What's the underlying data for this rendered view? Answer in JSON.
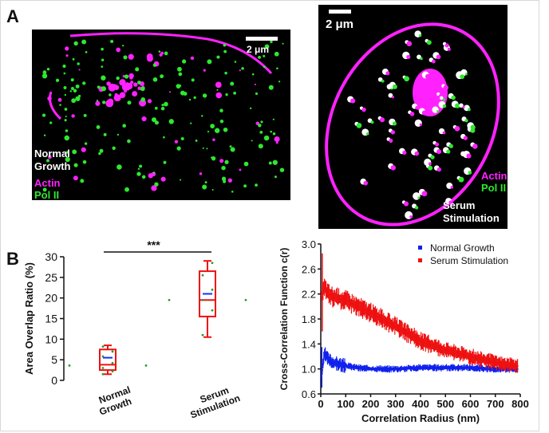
{
  "panel_a": {
    "letter": "A",
    "left_image": {
      "scale_bar": "2 μm",
      "condition_line1": "Normal",
      "condition_line2": "Growth",
      "legend_actin": "Actin",
      "legend_pol": "Pol II"
    },
    "right_image": {
      "scale_bar": "2 μm",
      "condition_line1": "Serum",
      "condition_line2": "Stimulation",
      "legend_actin": "Actin",
      "legend_pol": "Pol II"
    }
  },
  "panel_b": {
    "letter": "B"
  },
  "colors": {
    "actin": "#ff22ff",
    "pol_ii": "#2ee82e",
    "box": "#ee1111",
    "mean": "#1030ff",
    "normal_series": "#1020ee",
    "serum_series": "#ee1111"
  },
  "chart_data": [
    {
      "type": "box",
      "ylabel": "Area Overlap Ratio (%)",
      "xlabel": "",
      "ylim": [
        0,
        30
      ],
      "yticks": [
        0,
        5,
        10,
        15,
        20,
        25,
        30
      ],
      "categories": [
        "Normal Growth",
        "Serum Stimulation"
      ],
      "category_lines": [
        [
          "Normal",
          "Growth"
        ],
        [
          "Serum",
          "Stimulation"
        ]
      ],
      "boxes": [
        {
          "name": "Normal Growth",
          "whisker_low": 1.5,
          "q1": 2.5,
          "median": 3.8,
          "mean": 5.5,
          "q3": 7.5,
          "whisker_high": 8.5,
          "points": [
            1.5,
            2.2,
            3.0,
            4.2,
            5.8,
            7.0,
            8.2
          ],
          "outliers": [
            3.6,
            3.6
          ]
        },
        {
          "name": "Serum Stimulation",
          "whisker_low": 10.5,
          "q1": 15.5,
          "median": 19.5,
          "mean": 21.0,
          "q3": 26.5,
          "whisker_high": 29.0,
          "points": [
            11,
            17,
            19.5,
            22,
            25.5,
            28.5
          ],
          "outliers": [
            19.5,
            19.5
          ]
        }
      ],
      "significance": "***"
    },
    {
      "type": "scatter",
      "title": "",
      "xlabel": "Correlation Radius (nm)",
      "ylabel": "Cross-Correlation Function c(r)",
      "xlim": [
        0,
        800
      ],
      "ylim": [
        0.6,
        3.0
      ],
      "xticks": [
        0,
        100,
        200,
        300,
        400,
        500,
        600,
        700,
        800
      ],
      "yticks": [
        0.6,
        1.0,
        1.4,
        1.8,
        2.2,
        2.6,
        3.0
      ],
      "legend_position": "top-right",
      "series": [
        {
          "name": "Normal Growth",
          "x": [
            5,
            15,
            30,
            50,
            80,
            100,
            150,
            200,
            300,
            400,
            500,
            600,
            700,
            780
          ],
          "y": [
            0.95,
            1.25,
            1.15,
            1.1,
            1.07,
            1.05,
            1.02,
            1.0,
            1.0,
            1.02,
            1.02,
            1.02,
            1.0,
            1.0
          ]
        },
        {
          "name": "Serum Stimulation",
          "x": [
            5,
            15,
            30,
            50,
            80,
            100,
            150,
            200,
            300,
            400,
            500,
            600,
            700,
            780
          ],
          "y": [
            2.2,
            2.3,
            2.2,
            2.15,
            2.12,
            2.1,
            2.0,
            1.9,
            1.68,
            1.45,
            1.3,
            1.2,
            1.1,
            1.05
          ]
        }
      ]
    }
  ]
}
